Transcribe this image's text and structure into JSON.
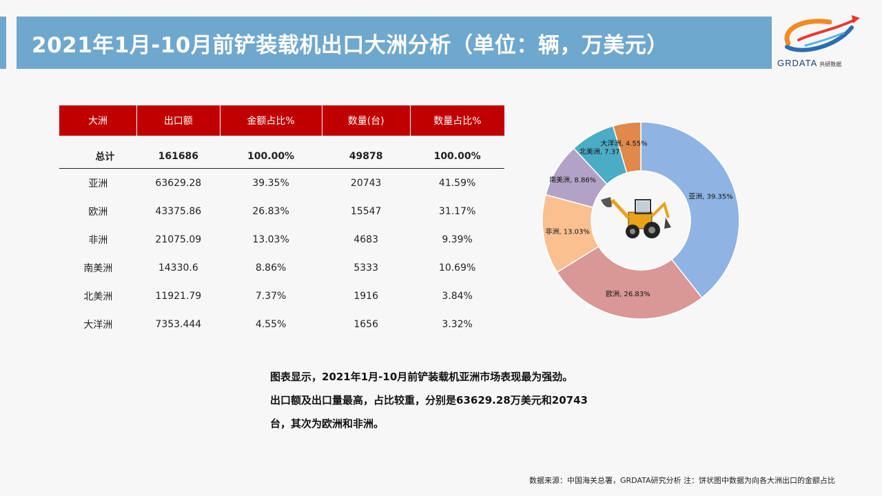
{
  "header": {
    "title": "2021年1月-10月前铲装载机出口大洲分析（单位：辆，万美元）"
  },
  "logo": {
    "name": "GRDATA",
    "sub": "共研数据"
  },
  "table": {
    "headers": [
      "大洲",
      "出口额",
      "金额占比%",
      "数量(台)",
      "数量占比%"
    ],
    "total": [
      "总计",
      "161686",
      "100.00%",
      "49878",
      "100.00%"
    ],
    "rows": [
      [
        "亚洲",
        "63629.28",
        "39.35%",
        "20743",
        "41.59%"
      ],
      [
        "欧洲",
        "43375.86",
        "26.83%",
        "15547",
        "31.17%"
      ],
      [
        "非洲",
        "21075.09",
        "13.03%",
        "4683",
        "9.39%"
      ],
      [
        "南美洲",
        "14330.6",
        "8.86%",
        "5333",
        "10.69%"
      ],
      [
        "北美洲",
        "11921.79",
        "7.37%",
        "1916",
        "3.84%"
      ],
      [
        "大洋洲",
        "7353.444",
        "4.55%",
        "1656",
        "3.32%"
      ]
    ]
  },
  "chart_data": {
    "type": "pie",
    "donut": true,
    "categories": [
      "亚洲",
      "欧洲",
      "非洲",
      "南美洲",
      "北美洲",
      "大洋洲"
    ],
    "values": [
      39.35,
      26.83,
      13.03,
      8.86,
      7.37,
      4.55
    ],
    "labels": [
      "亚洲, 39.35%",
      "欧洲, 26.83%",
      "非洲, 13.03%",
      "南美洲, 8.86%",
      "北美洲, 7.37%",
      "大洋洲, 4.55%"
    ],
    "colors": [
      "#8fb4e3",
      "#d99795",
      "#fac090",
      "#b3a2c7",
      "#4bacc6",
      "#e0894a"
    ],
    "start": "12 o'clock, clockwise",
    "center_image": "loader-icon"
  },
  "summary": {
    "line1": "图表显示，2021年1月-10月前铲装载机亚洲市场表现最为强劲。",
    "line2": "出口额及出口量最高，占比较重，分别是63629.28万美元和20743",
    "line3": "台，其次为欧洲和非洲。"
  },
  "footer": {
    "source": "数据来源：中国海关总署，GRDATA研究分析  注：饼状图中数据为向各大洲出口的金额占比"
  }
}
